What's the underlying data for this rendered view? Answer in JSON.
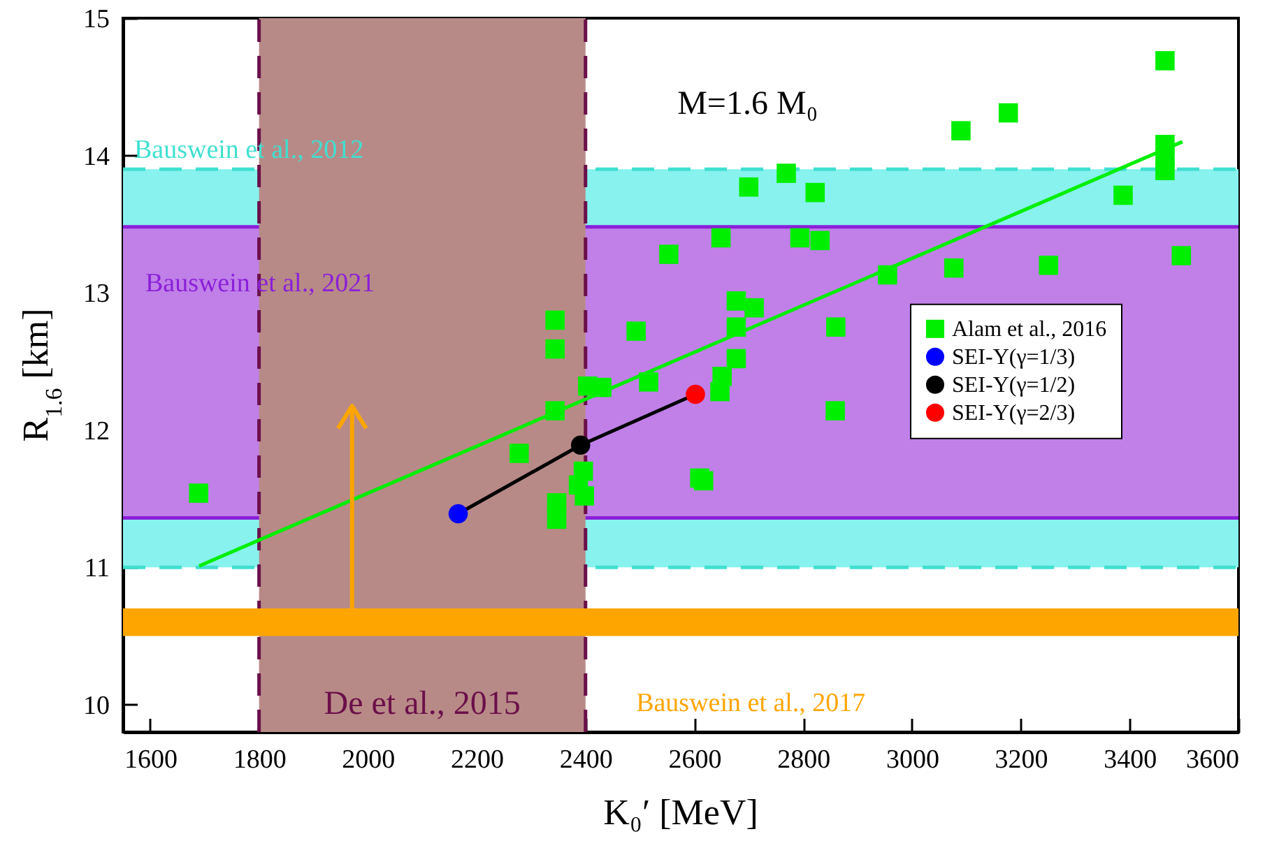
{
  "chart_data": {
    "type": "scatter",
    "xlabel": "K₀′ [MeV]",
    "ylabel": "R$_{1.6}$ [km]",
    "annotations": [
      "M=1.6 M₀"
    ],
    "xlim": [
      1550,
      3600
    ],
    "xticks": [
      1600,
      1800,
      2000,
      2200,
      2400,
      2600,
      2800,
      3000,
      3200,
      3400,
      3600
    ],
    "ylim": [
      9.8,
      15
    ],
    "yticks": [
      10,
      11,
      12,
      13,
      14,
      15
    ],
    "legend": "right",
    "bands": [
      {
        "axis": "y",
        "from": 11.0,
        "to": 13.9,
        "label": "Bauswein et al., 2012",
        "color": "#88f2ee"
      },
      {
        "axis": "y",
        "from": 11.36,
        "to": 13.48,
        "label": "Bauswein et al., 2021",
        "color": "#c080e8"
      },
      {
        "axis": "x",
        "from": 1800,
        "to": 2400,
        "label": "De et al., 2015",
        "color": "#b88a87"
      },
      {
        "axis": "y",
        "from": 10.5,
        "to": 10.7,
        "label": "Bauswein et al., 2017",
        "color": "#ffa500"
      }
    ],
    "ref_lines": [
      {
        "axis": "y",
        "value": 11.0,
        "color": "#40e0d0",
        "line_style": "dashed"
      },
      {
        "axis": "y",
        "value": 13.9,
        "color": "#40e0d0",
        "line_style": "dashed"
      },
      {
        "axis": "y",
        "value": 11.36,
        "color": "#8b1fd8",
        "line_style": "solid"
      },
      {
        "axis": "y",
        "value": 13.48,
        "color": "#8b1fd8",
        "line_style": "solid"
      },
      {
        "axis": "x",
        "value": 1800,
        "color": "#6b0f4a",
        "line_style": "dashed"
      },
      {
        "axis": "x",
        "value": 2400,
        "color": "#6b0f4a",
        "line_style": "dashed"
      }
    ],
    "series": [
      {
        "type": "line",
        "color": "#00ee00",
        "x": [
          1690,
          3497
        ],
        "values": [
          11.01,
          14.1
        ]
      },
      {
        "type": "line",
        "color": "#000000",
        "x": [
          2166,
          2391,
          2602
        ],
        "values": [
          11.39,
          11.89,
          12.26
        ]
      },
      {
        "name": "Alam et al., 2016",
        "marker": "square",
        "color": "#00ee00",
        "x": [
          1689,
          2278,
          2396,
          2387,
          2398,
          2347,
          2347,
          2344,
          2344,
          2344,
          2493,
          2553,
          2404,
          2430,
          2516,
          2649,
          2700,
          2769,
          2822,
          2794,
          2831,
          2677,
          2710,
          2677,
          2860,
          2677,
          2651,
          2647,
          2859,
          2610,
          2617,
          2955,
          3077,
          3090,
          3177,
          3251,
          3388,
          3465,
          3465,
          3465,
          3465,
          3495
        ],
        "values": [
          11.54,
          11.83,
          11.7,
          11.6,
          11.52,
          11.47,
          11.35,
          12.8,
          12.59,
          12.14,
          12.72,
          13.28,
          12.32,
          12.31,
          12.35,
          13.4,
          13.77,
          13.87,
          13.73,
          13.4,
          13.38,
          12.94,
          12.89,
          12.75,
          12.75,
          12.52,
          12.39,
          12.28,
          12.14,
          11.65,
          11.63,
          13.13,
          13.18,
          14.18,
          14.31,
          13.2,
          13.71,
          14.69,
          14.08,
          13.98,
          13.89,
          13.27
        ]
      },
      {
        "name": "SEI-Y(γ=1/3)",
        "marker": "circle",
        "color": "#0000ff",
        "x": [
          2166
        ],
        "values": [
          11.39
        ]
      },
      {
        "name": "SEI-Y(γ=1/2)",
        "marker": "circle",
        "color": "#000000",
        "x": [
          2391
        ],
        "values": [
          11.89
        ]
      },
      {
        "name": "SEI-Y(γ=2/3)",
        "marker": "circle",
        "color": "#ff0000",
        "x": [
          2602
        ],
        "values": [
          12.26
        ]
      }
    ]
  }
}
